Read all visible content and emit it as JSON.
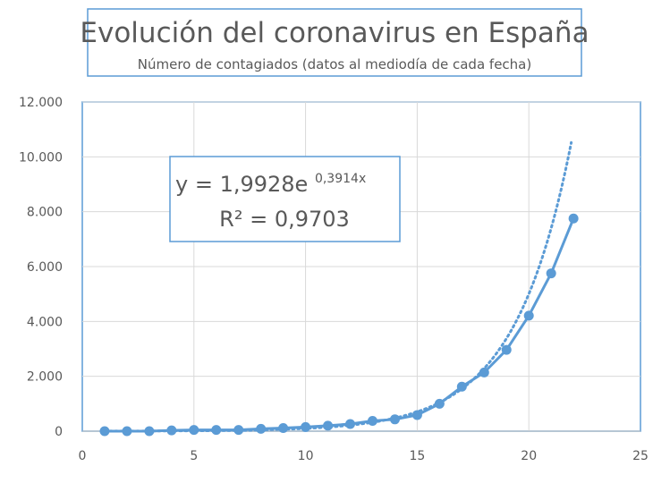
{
  "chart_data": {
    "type": "scatter",
    "title": "Evolución del coronavirus en España",
    "subtitle": "Número de contagiados (datos al mediodía de cada fecha)",
    "xlim": [
      0,
      25
    ],
    "ylim": [
      0,
      12000
    ],
    "grid": true,
    "legend": "none",
    "x_ticks": [
      0,
      5,
      10,
      15,
      20,
      25
    ],
    "x_tick_labels": [
      "0",
      "5",
      "10",
      "15",
      "20",
      "25"
    ],
    "y_ticks": [
      0,
      2000,
      4000,
      6000,
      8000,
      10000,
      12000
    ],
    "y_tick_labels": [
      "0",
      "2.000",
      "4.000",
      "6.000",
      "8.000",
      "10.000",
      "12.000"
    ],
    "colors": {
      "series": "#5b9bd5",
      "grid": "#d9d9d9",
      "frame": "#5b9bd5",
      "text": "#595959"
    },
    "series": [
      {
        "x": [
          1,
          2,
          3,
          4,
          5,
          6,
          7,
          8,
          9,
          10,
          11,
          12,
          13,
          14,
          15,
          16,
          17,
          18,
          19,
          20,
          21,
          22
        ],
        "y": [
          0,
          0,
          0,
          30,
          45,
          45,
          45,
          84,
          114,
          151,
          200,
          261,
          374,
          430,
          589,
          999,
          1622,
          2140,
          2965,
          4209,
          5753,
          7753
        ]
      }
    ],
    "trendline": {
      "type": "exponential",
      "a": 1.9928,
      "b": 0.3914,
      "equation": {
        "prefix": "y = 1,9928e",
        "exponent": "0,3914x"
      },
      "r2_label": "R² = 0,9703"
    }
  }
}
